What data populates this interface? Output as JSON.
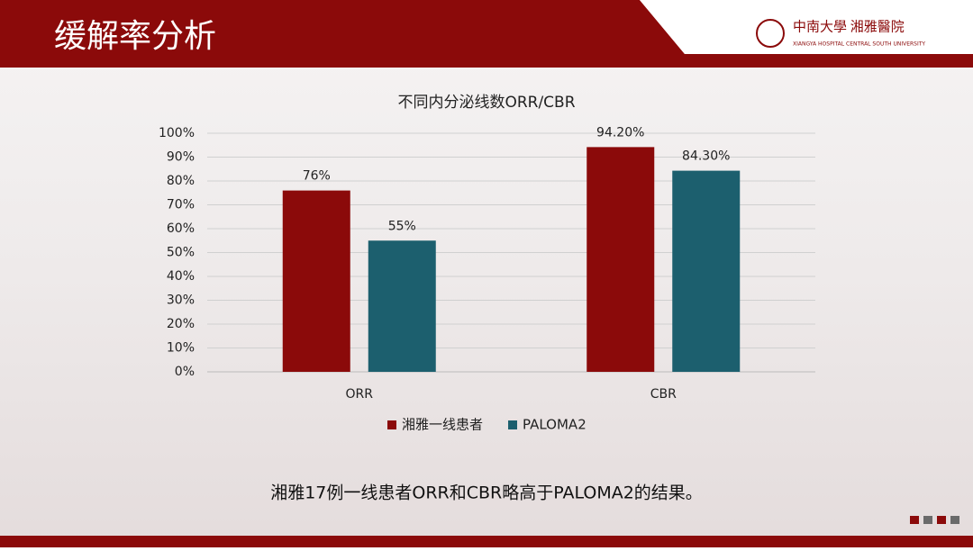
{
  "header": {
    "title": "缓解率分析",
    "logo_name": "中南大學 湘雅醫院",
    "logo_subtitle": "XIANGYA HOSPITAL CENTRAL SOUTH UNIVERSITY"
  },
  "chart_data": {
    "type": "bar",
    "title": "不同内分泌线数ORR/CBR",
    "categories": [
      "ORR",
      "CBR"
    ],
    "series": [
      {
        "name": "湘雅一线患者",
        "color": "#8b0a0a",
        "values": [
          76,
          94.2
        ],
        "value_labels": [
          "76%",
          "94.20%"
        ]
      },
      {
        "name": "PALOMA2",
        "color": "#1c5f6e",
        "values": [
          55,
          84.3
        ],
        "value_labels": [
          "55%",
          "84.30%"
        ]
      }
    ],
    "ylim": [
      0,
      100
    ],
    "yticks": [
      {
        "value": 0,
        "label": "0%"
      },
      {
        "value": 10,
        "label": "10%"
      },
      {
        "value": 20,
        "label": "20%"
      },
      {
        "value": 30,
        "label": "30%"
      },
      {
        "value": 40,
        "label": "40%"
      },
      {
        "value": 50,
        "label": "50%"
      },
      {
        "value": 60,
        "label": "60%"
      },
      {
        "value": 70,
        "label": "70%"
      },
      {
        "value": 80,
        "label": "80%"
      },
      {
        "value": 90,
        "label": "90%"
      },
      {
        "value": 100,
        "label": "100%"
      }
    ],
    "grid": true,
    "legend": "bottom"
  },
  "caption": "湘雅17例一线患者ORR和CBR略高于PALOMA2的结果。"
}
